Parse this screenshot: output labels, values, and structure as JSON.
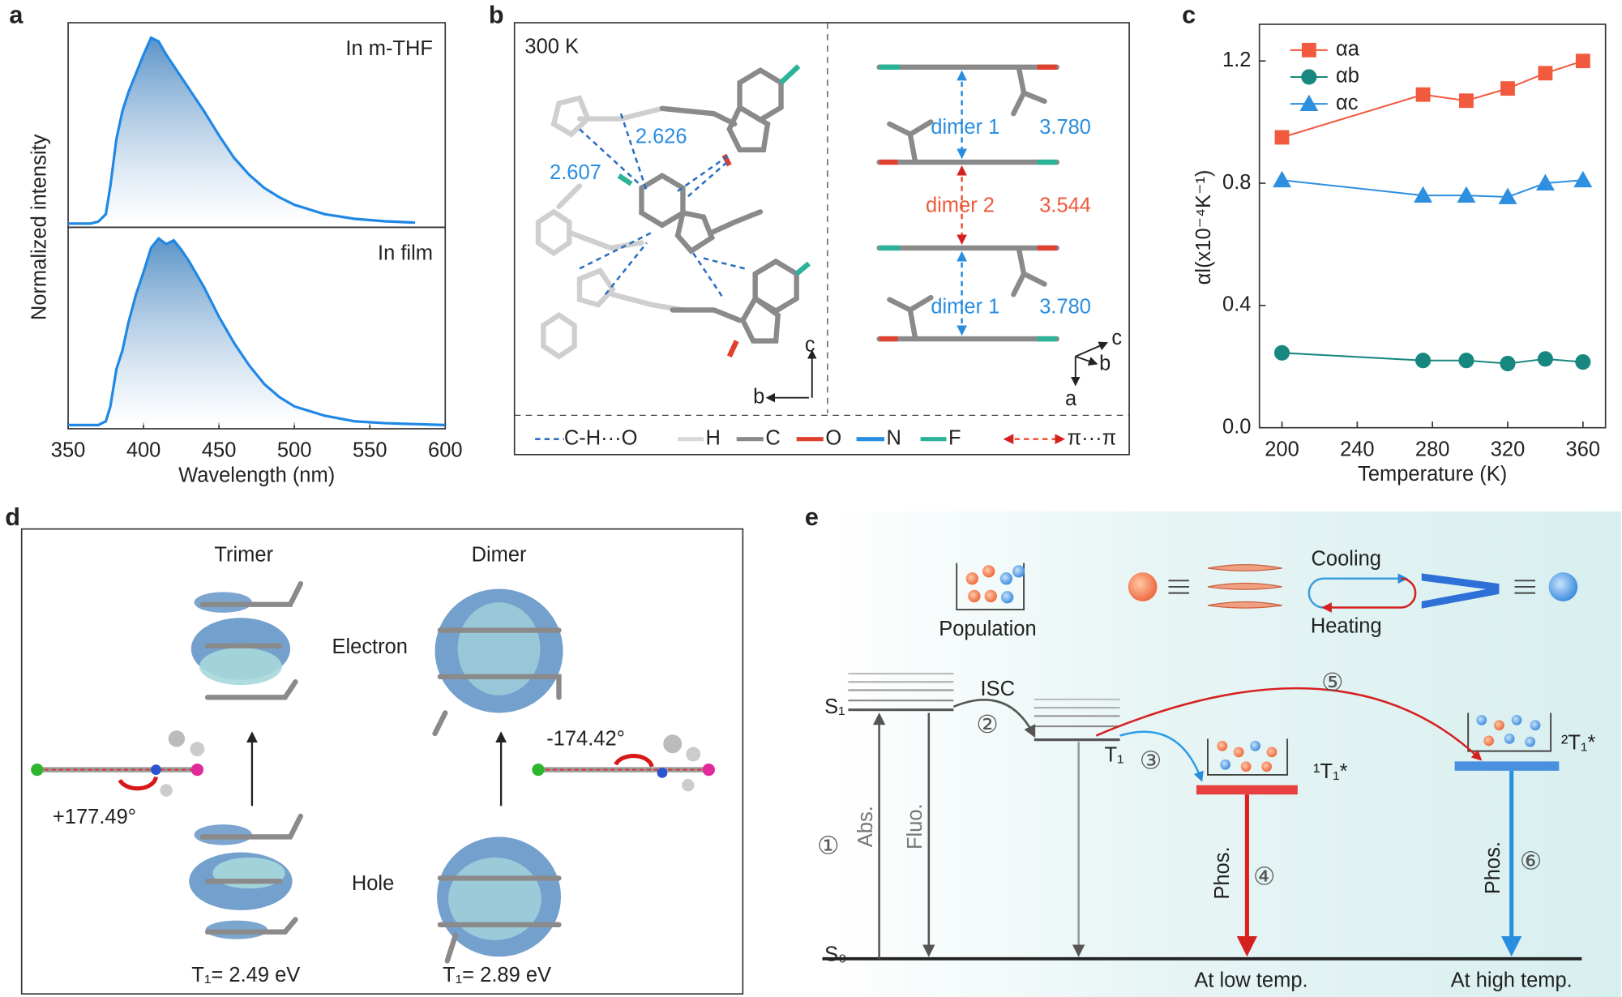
{
  "panel_labels": [
    "a",
    "b",
    "c",
    "d",
    "e"
  ],
  "chart_data": [
    {
      "type": "line",
      "ylabel": "Normalized intensity",
      "annotation": "In m-THF",
      "area": true,
      "xlim": [
        350,
        600
      ],
      "ylim": [
        -0.02,
        1.07
      ],
      "x": [
        350,
        365,
        370,
        375,
        378,
        382,
        386,
        390,
        395,
        400,
        405,
        410,
        415,
        420,
        430,
        440,
        450,
        460,
        470,
        480,
        490,
        500,
        520,
        540,
        560,
        580
      ],
      "series": [
        {
          "color": "#1f88e5",
          "values": [
            0,
            0,
            0.01,
            0.05,
            0.2,
            0.45,
            0.6,
            0.7,
            0.8,
            0.9,
            0.99,
            0.97,
            0.9,
            0.84,
            0.72,
            0.6,
            0.47,
            0.35,
            0.26,
            0.19,
            0.14,
            0.1,
            0.05,
            0.025,
            0.012,
            0.005
          ]
        }
      ]
    },
    {
      "type": "line",
      "annotation": "In film",
      "xlabel": "Wavelength (nm)",
      "area": true,
      "xlim": [
        350,
        600
      ],
      "xticks": [
        350,
        400,
        450,
        500,
        550,
        600
      ],
      "ylim": [
        -0.02,
        1.06
      ],
      "x": [
        350,
        370,
        375,
        378,
        382,
        386,
        390,
        395,
        400,
        405,
        410,
        415,
        420,
        425,
        430,
        440,
        450,
        460,
        470,
        480,
        490,
        500,
        520,
        540,
        560,
        600
      ],
      "series": [
        {
          "color": "#1f88e5",
          "values": [
            0,
            0,
            0.02,
            0.1,
            0.3,
            0.4,
            0.55,
            0.7,
            0.82,
            0.95,
            1,
            0.97,
            0.99,
            0.94,
            0.88,
            0.74,
            0.58,
            0.44,
            0.32,
            0.22,
            0.15,
            0.1,
            0.05,
            0.02,
            0.01,
            0
          ]
        }
      ]
    },
    {
      "type": "line",
      "xlabel": "Temperature (K)",
      "ylabel": "αl(x10⁻⁴K⁻¹)",
      "legend": "upper left",
      "xlim": [
        188,
        372
      ],
      "xticks": [
        200,
        240,
        280,
        320,
        360
      ],
      "ylim": [
        0,
        1.32
      ],
      "yticks": [
        {
          "value": 0,
          "label": "0.0"
        },
        0.4,
        0.8,
        1.2
      ],
      "x": [
        200,
        275,
        298,
        320,
        340,
        360
      ],
      "series": [
        {
          "name": "αa",
          "color": "#f15a3f",
          "marker": "square",
          "values": [
            0.95,
            1.09,
            1.07,
            1.11,
            1.16,
            1.2
          ]
        },
        {
          "name": "αb",
          "color": "#17877f",
          "marker": "circle",
          "values": [
            0.245,
            0.22,
            0.22,
            0.21,
            0.225,
            0.215
          ]
        },
        {
          "name": "αc",
          "color": "#2d8fe0",
          "marker": "triangle",
          "values": [
            0.81,
            0.76,
            0.76,
            0.755,
            0.8,
            0.81
          ]
        }
      ]
    }
  ],
  "panel_b": {
    "temperature": "300 K",
    "distances": [
      "2.626",
      "2.607"
    ],
    "dimers": [
      {
        "label": "dimer 1",
        "distance": "3.780"
      },
      {
        "label": "dimer 2",
        "distance": "3.544"
      },
      {
        "label": "dimer 1",
        "distance": "3.780"
      }
    ],
    "axes_left": [
      "c",
      "b"
    ],
    "axes_right": [
      "c",
      "b",
      "a"
    ],
    "legend": [
      "C-H···O",
      "H",
      "C",
      "O",
      "N",
      "F",
      "π···π"
    ]
  },
  "panel_d": {
    "columns": [
      {
        "title": "Trimer",
        "angle": "+177.49°",
        "energy": "T₁= 2.49 eV"
      },
      {
        "title": "Dimer",
        "angle": "-174.42°",
        "energy": "T₁= 2.89 eV"
      }
    ],
    "row_labels": [
      "Electron",
      "Hole"
    ]
  },
  "panel_e": {
    "population": "Population",
    "cooling": "Cooling",
    "heating": "Heating",
    "s1": "S₁",
    "isc": "ISC",
    "t1": "T₁",
    "s0": "S₀",
    "steps": [
      "①",
      "②",
      "③",
      "④",
      "⑤",
      "⑥"
    ],
    "abs": "Abs.",
    "fluo": "Fluo.",
    "phos": [
      "Phos.",
      "Phos."
    ],
    "t1_low": "¹T₁*",
    "t1_high": "²T₁*",
    "low": "At low temp.",
    "high": "At high temp."
  }
}
